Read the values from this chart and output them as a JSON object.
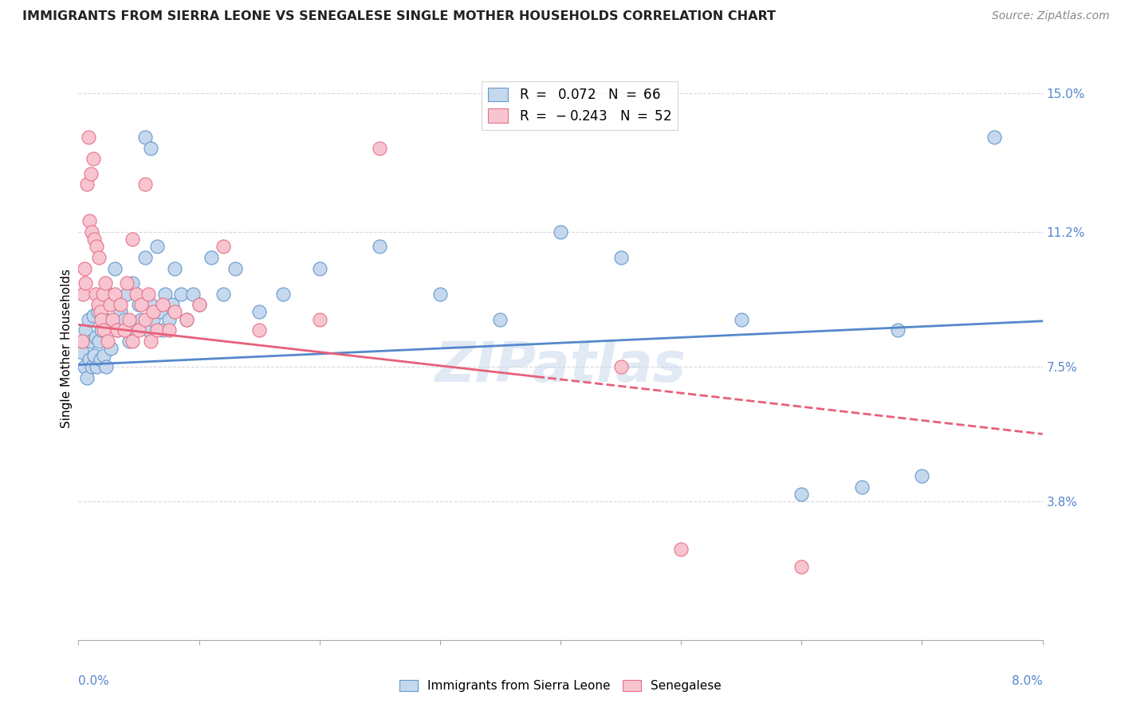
{
  "title": "IMMIGRANTS FROM SIERRA LEONE VS SENEGALESE SINGLE MOTHER HOUSEHOLDS CORRELATION CHART",
  "source": "Source: ZipAtlas.com",
  "ylabel": "Single Mother Households",
  "xlim": [
    0.0,
    8.0
  ],
  "ylim": [
    0.0,
    16.0
  ],
  "ytick_vals": [
    3.8,
    7.5,
    11.2,
    15.0
  ],
  "ytick_labels": [
    "3.8%",
    "7.5%",
    "11.2%",
    "15.0%"
  ],
  "color_blue_fill": "#c5d8ed",
  "color_blue_edge": "#6699cc",
  "color_pink_fill": "#f7c5d0",
  "color_pink_edge": "#e8708a",
  "color_blue_line": "#5588cc",
  "color_pink_line": "#e8607a",
  "color_tick_label": "#5588cc",
  "color_grid": "#d8d8d8",
  "watermark": "ZIPatlas",
  "blue_trend": [
    0.0,
    7.55,
    8.0,
    8.75
  ],
  "pink_trend_x0": 0.0,
  "pink_trend_y0": 8.65,
  "pink_trend_x1": 8.0,
  "pink_trend_y1": 5.65,
  "pink_solid_end_x": 3.8,
  "blue_points": [
    [
      0.03,
      7.9
    ],
    [
      0.05,
      7.5
    ],
    [
      0.06,
      8.5
    ],
    [
      0.07,
      7.2
    ],
    [
      0.08,
      8.8
    ],
    [
      0.09,
      7.7
    ],
    [
      0.1,
      8.2
    ],
    [
      0.11,
      7.5
    ],
    [
      0.12,
      8.9
    ],
    [
      0.13,
      7.8
    ],
    [
      0.14,
      8.3
    ],
    [
      0.15,
      7.5
    ],
    [
      0.16,
      9.0
    ],
    [
      0.17,
      8.2
    ],
    [
      0.18,
      7.7
    ],
    [
      0.19,
      8.5
    ],
    [
      0.2,
      9.2
    ],
    [
      0.21,
      7.8
    ],
    [
      0.22,
      8.8
    ],
    [
      0.23,
      7.5
    ],
    [
      0.25,
      9.5
    ],
    [
      0.27,
      8.0
    ],
    [
      0.3,
      10.2
    ],
    [
      0.32,
      8.5
    ],
    [
      0.35,
      9.0
    ],
    [
      0.38,
      8.8
    ],
    [
      0.4,
      9.5
    ],
    [
      0.42,
      8.2
    ],
    [
      0.45,
      9.8
    ],
    [
      0.48,
      8.5
    ],
    [
      0.5,
      9.2
    ],
    [
      0.52,
      8.8
    ],
    [
      0.55,
      10.5
    ],
    [
      0.58,
      8.5
    ],
    [
      0.6,
      9.2
    ],
    [
      0.62,
      8.8
    ],
    [
      0.65,
      10.8
    ],
    [
      0.68,
      9.0
    ],
    [
      0.7,
      8.5
    ],
    [
      0.72,
      9.5
    ],
    [
      0.75,
      8.8
    ],
    [
      0.78,
      9.2
    ],
    [
      0.8,
      10.2
    ],
    [
      0.85,
      9.5
    ],
    [
      0.9,
      8.8
    ],
    [
      0.95,
      9.5
    ],
    [
      1.0,
      9.2
    ],
    [
      1.1,
      10.5
    ],
    [
      1.2,
      9.5
    ],
    [
      1.3,
      10.2
    ],
    [
      1.5,
      9.0
    ],
    [
      1.7,
      9.5
    ],
    [
      2.0,
      10.2
    ],
    [
      2.5,
      10.8
    ],
    [
      3.0,
      9.5
    ],
    [
      3.5,
      8.8
    ],
    [
      4.0,
      11.2
    ],
    [
      4.5,
      10.5
    ],
    [
      5.5,
      8.8
    ],
    [
      6.0,
      4.0
    ],
    [
      6.5,
      4.2
    ],
    [
      7.0,
      4.5
    ],
    [
      7.6,
      13.8
    ],
    [
      6.8,
      8.5
    ],
    [
      0.55,
      13.8
    ],
    [
      0.6,
      13.5
    ]
  ],
  "pink_points": [
    [
      0.03,
      8.2
    ],
    [
      0.04,
      9.5
    ],
    [
      0.05,
      10.2
    ],
    [
      0.06,
      9.8
    ],
    [
      0.07,
      12.5
    ],
    [
      0.08,
      13.8
    ],
    [
      0.09,
      11.5
    ],
    [
      0.1,
      12.8
    ],
    [
      0.11,
      11.2
    ],
    [
      0.12,
      13.2
    ],
    [
      0.13,
      11.0
    ],
    [
      0.14,
      9.5
    ],
    [
      0.15,
      10.8
    ],
    [
      0.16,
      9.2
    ],
    [
      0.17,
      10.5
    ],
    [
      0.18,
      9.0
    ],
    [
      0.19,
      8.8
    ],
    [
      0.2,
      9.5
    ],
    [
      0.21,
      8.5
    ],
    [
      0.22,
      9.8
    ],
    [
      0.24,
      8.2
    ],
    [
      0.26,
      9.2
    ],
    [
      0.28,
      8.8
    ],
    [
      0.3,
      9.5
    ],
    [
      0.32,
      8.5
    ],
    [
      0.35,
      9.2
    ],
    [
      0.38,
      8.5
    ],
    [
      0.4,
      9.8
    ],
    [
      0.42,
      8.8
    ],
    [
      0.45,
      8.2
    ],
    [
      0.48,
      9.5
    ],
    [
      0.5,
      8.5
    ],
    [
      0.52,
      9.2
    ],
    [
      0.55,
      8.8
    ],
    [
      0.58,
      9.5
    ],
    [
      0.6,
      8.2
    ],
    [
      0.62,
      9.0
    ],
    [
      0.65,
      8.5
    ],
    [
      0.7,
      9.2
    ],
    [
      0.75,
      8.5
    ],
    [
      0.8,
      9.0
    ],
    [
      0.9,
      8.8
    ],
    [
      1.0,
      9.2
    ],
    [
      1.2,
      10.8
    ],
    [
      1.5,
      8.5
    ],
    [
      2.0,
      8.8
    ],
    [
      2.5,
      13.5
    ],
    [
      0.45,
      11.0
    ],
    [
      0.55,
      12.5
    ],
    [
      4.5,
      7.5
    ],
    [
      5.0,
      2.5
    ],
    [
      6.0,
      2.0
    ]
  ]
}
